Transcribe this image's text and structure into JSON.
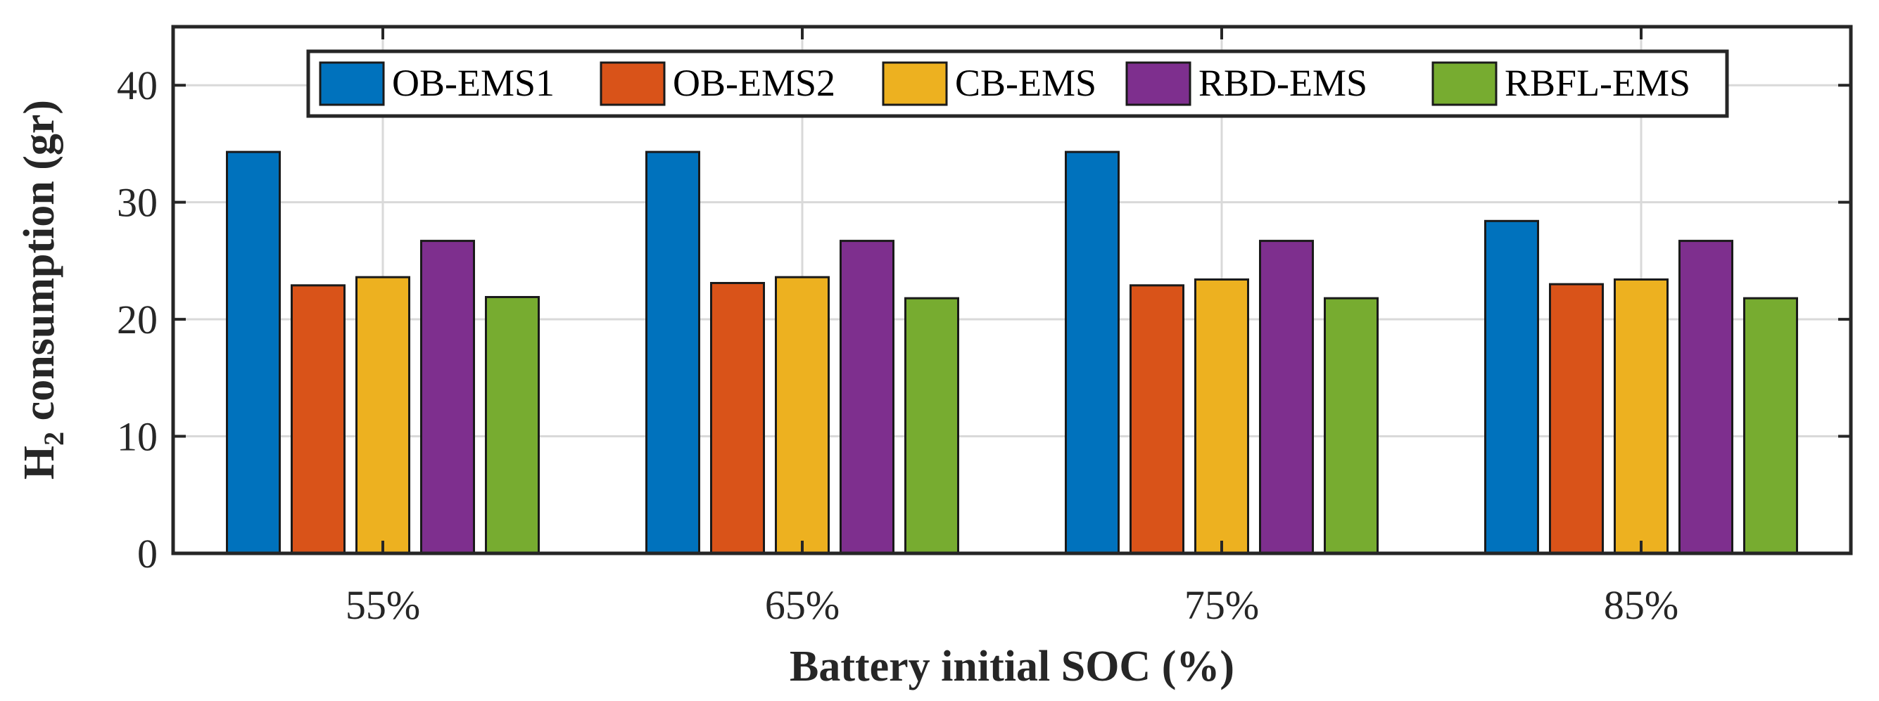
{
  "chart_data": {
    "type": "bar",
    "title": "",
    "xlabel": "Battery initial SOC (%)",
    "ylabel_main": "H",
    "ylabel_sub": "2",
    "ylabel_rest": " consumption (gr)",
    "categories": [
      "55%",
      "65%",
      "75%",
      "85%"
    ],
    "ylim": [
      0,
      45
    ],
    "yticks": [
      0,
      10,
      20,
      30,
      40
    ],
    "grid": true,
    "legend_position": "top",
    "series": [
      {
        "name": "OB-EMS1",
        "color": "#0072BD",
        "values": [
          34.3,
          34.3,
          34.3,
          28.4
        ]
      },
      {
        "name": "OB-EMS2",
        "color": "#D95319",
        "values": [
          22.9,
          23.1,
          22.9,
          23.0
        ]
      },
      {
        "name": "CB-EMS",
        "color": "#EDB120",
        "values": [
          23.6,
          23.6,
          23.4,
          23.4
        ]
      },
      {
        "name": "RBD-EMS",
        "color": "#7E2F8E",
        "values": [
          26.7,
          26.7,
          26.7,
          26.7
        ]
      },
      {
        "name": "RBFL-EMS",
        "color": "#77AC30",
        "values": [
          21.9,
          21.8,
          21.8,
          21.8
        ]
      }
    ]
  }
}
